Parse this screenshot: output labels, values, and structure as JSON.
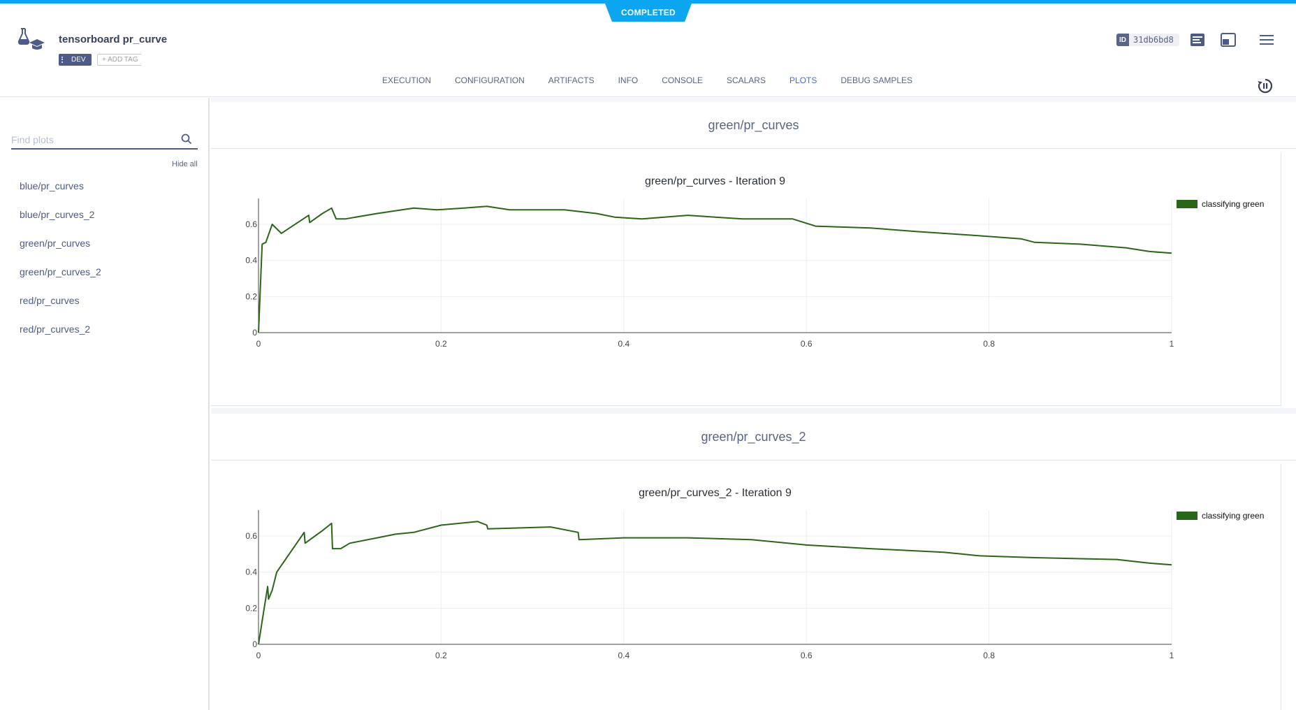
{
  "status": "COMPLETED",
  "task": {
    "title": "tensorboard pr_curve",
    "tags": [
      "DEV"
    ],
    "add_tag_label": "+ ADD TAG",
    "id_label": "ID",
    "id_value": "31db6bd8"
  },
  "tabs": [
    {
      "label": "EXECUTION",
      "active": false
    },
    {
      "label": "CONFIGURATION",
      "active": false
    },
    {
      "label": "ARTIFACTS",
      "active": false
    },
    {
      "label": "INFO",
      "active": false
    },
    {
      "label": "CONSOLE",
      "active": false
    },
    {
      "label": "SCALARS",
      "active": false
    },
    {
      "label": "PLOTS",
      "active": true
    },
    {
      "label": "DEBUG SAMPLES",
      "active": false
    }
  ],
  "sidebar": {
    "search_placeholder": "Find plots",
    "hide_all_label": "Hide all",
    "items": [
      "blue/pr_curves",
      "blue/pr_curves_2",
      "green/pr_curves",
      "green/pr_curves_2",
      "red/pr_curves",
      "red/pr_curves_2"
    ]
  },
  "colors": {
    "accent": "#3e6fd9",
    "status": "#0ca5f0",
    "series": "#2a661a"
  },
  "panels": [
    {
      "group_title": "green/pr_curves"
    },
    {
      "group_title": "green/pr_curves_2"
    }
  ],
  "chart_data": [
    {
      "type": "line",
      "title": "green/pr_curves - Iteration 9",
      "xlim": [
        0,
        1
      ],
      "ylim": [
        0,
        0.72
      ],
      "xticks": [
        "0",
        "0.2",
        "0.4",
        "0.6",
        "0.8",
        "1"
      ],
      "yticks": [
        "0",
        "0.2",
        "0.4",
        "0.6"
      ],
      "grid": true,
      "legend_position": "top-right",
      "series": [
        {
          "name": "classifying green",
          "color": "#2a661a",
          "x": [
            0,
            0.004,
            0.008,
            0.015,
            0.025,
            0.055,
            0.056,
            0.07,
            0.08,
            0.085,
            0.095,
            0.13,
            0.17,
            0.195,
            0.225,
            0.25,
            0.275,
            0.3,
            0.335,
            0.37,
            0.39,
            0.42,
            0.47,
            0.53,
            0.585,
            0.61,
            0.67,
            0.72,
            0.78,
            0.835,
            0.85,
            0.9,
            0.95,
            0.975,
            1.0
          ],
          "y": [
            0.0,
            0.49,
            0.5,
            0.6,
            0.55,
            0.65,
            0.61,
            0.66,
            0.69,
            0.63,
            0.63,
            0.66,
            0.69,
            0.68,
            0.69,
            0.7,
            0.68,
            0.68,
            0.68,
            0.66,
            0.64,
            0.63,
            0.65,
            0.63,
            0.63,
            0.59,
            0.58,
            0.56,
            0.54,
            0.52,
            0.5,
            0.49,
            0.47,
            0.45,
            0.44
          ]
        }
      ]
    },
    {
      "type": "line",
      "title": "green/pr_curves_2 - Iteration 9",
      "xlim": [
        0,
        1
      ],
      "ylim": [
        0,
        0.72
      ],
      "xticks": [
        "0",
        "0.2",
        "0.4",
        "0.6",
        "0.8",
        "1"
      ],
      "yticks": [
        "0",
        "0.2",
        "0.4",
        "0.6"
      ],
      "grid": true,
      "legend_position": "top-right",
      "series": [
        {
          "name": "classifying green",
          "color": "#2a661a",
          "x": [
            0,
            0.005,
            0.01,
            0.011,
            0.015,
            0.02,
            0.05,
            0.051,
            0.07,
            0.08,
            0.081,
            0.09,
            0.1,
            0.13,
            0.15,
            0.17,
            0.2,
            0.24,
            0.25,
            0.251,
            0.32,
            0.35,
            0.351,
            0.4,
            0.42,
            0.47,
            0.54,
            0.6,
            0.67,
            0.75,
            0.77,
            0.79,
            0.85,
            0.94,
            0.975,
            1.0
          ],
          "y": [
            0.0,
            0.16,
            0.32,
            0.25,
            0.3,
            0.4,
            0.62,
            0.56,
            0.63,
            0.67,
            0.53,
            0.53,
            0.56,
            0.59,
            0.61,
            0.62,
            0.66,
            0.68,
            0.66,
            0.64,
            0.65,
            0.62,
            0.58,
            0.59,
            0.59,
            0.59,
            0.58,
            0.55,
            0.53,
            0.51,
            0.5,
            0.49,
            0.48,
            0.47,
            0.45,
            0.44
          ]
        }
      ]
    }
  ]
}
